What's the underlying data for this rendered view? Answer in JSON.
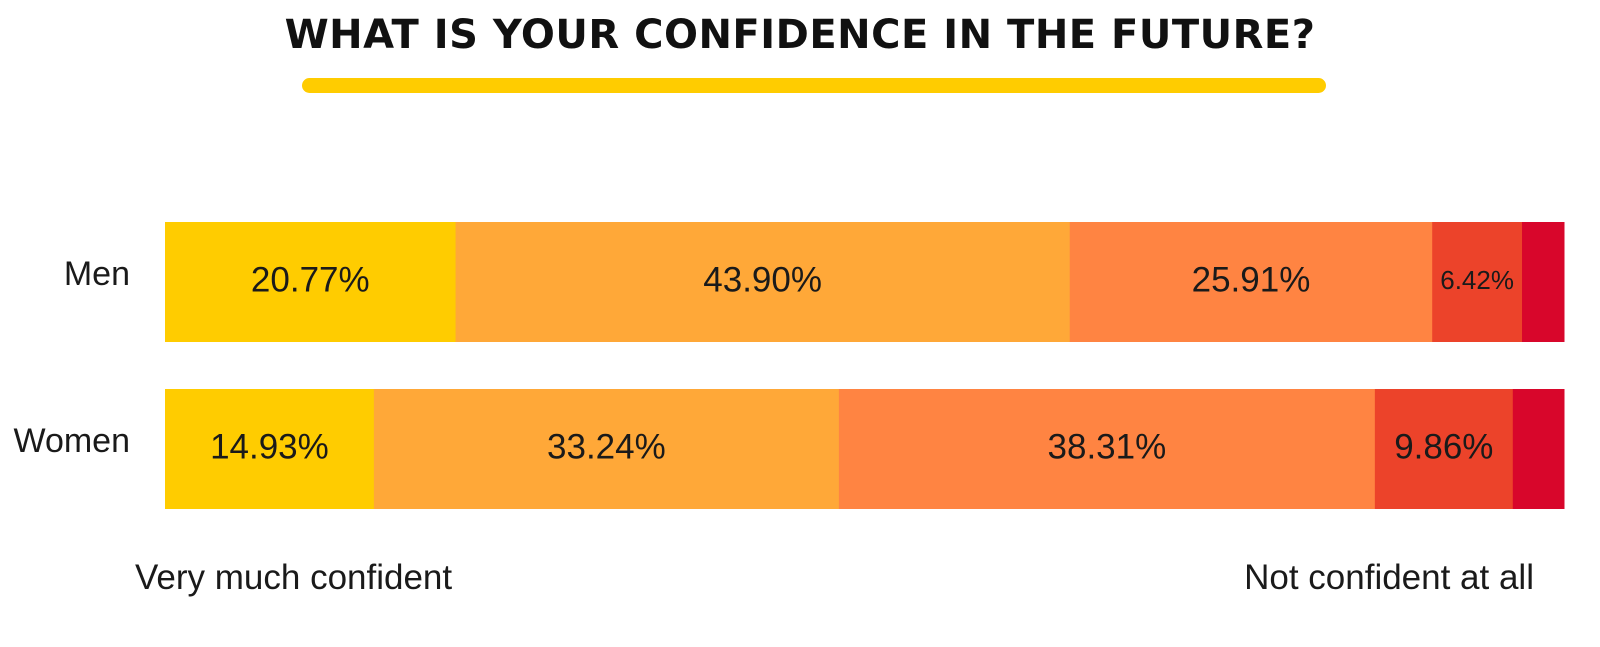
{
  "chart_data": {
    "type": "bar",
    "orientation": "horizontal",
    "stacked": true,
    "title": "WHAT IS YOUR CONFIDENCE IN THE FUTURE?",
    "categories": [
      "Men",
      "Women"
    ],
    "series": [
      {
        "color": "#FFCC00",
        "values": [
          20.77,
          14.93
        ]
      },
      {
        "color": "#FFA838",
        "values": [
          43.9,
          33.24
        ]
      },
      {
        "color": "#FF8442",
        "values": [
          25.91,
          38.31
        ]
      },
      {
        "color": "#EC432A",
        "values": [
          6.42,
          9.86
        ]
      },
      {
        "color": "#D8062B",
        "values": [
          3.0,
          3.66
        ]
      }
    ],
    "data_labels": [
      [
        "20.77%",
        "43.90%",
        "25.91%",
        "6.42%",
        ""
      ],
      [
        "14.93%",
        "33.24%",
        "38.31%",
        "9.86%",
        ""
      ]
    ],
    "scale_left_label": "Very much confident",
    "scale_right_label": "Not confident at all",
    "xlim": [
      0,
      100
    ],
    "grid": false,
    "accent_color": "#FFCC00"
  }
}
